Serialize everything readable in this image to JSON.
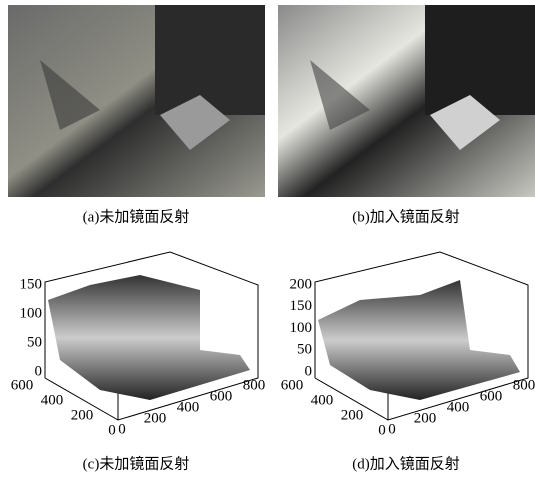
{
  "panels": [
    {
      "caption": "(a)未加镜面反射"
    },
    {
      "caption": "(b)加入镜面反射"
    },
    {
      "caption": "(c)未加镜面反射",
      "zticks": [
        "150",
        "100",
        "50",
        "0"
      ],
      "yticks": [
        "600",
        "400",
        "200",
        "0"
      ],
      "xticks": [
        "0",
        "200",
        "400",
        "600",
        "800"
      ]
    },
    {
      "caption": "(d)加入镜面反射",
      "zticks": [
        "200",
        "150",
        "100",
        "50",
        "0"
      ],
      "yticks": [
        "600",
        "400",
        "200",
        "0"
      ],
      "xticks": [
        "0",
        "200",
        "400",
        "600",
        "800"
      ]
    }
  ]
}
